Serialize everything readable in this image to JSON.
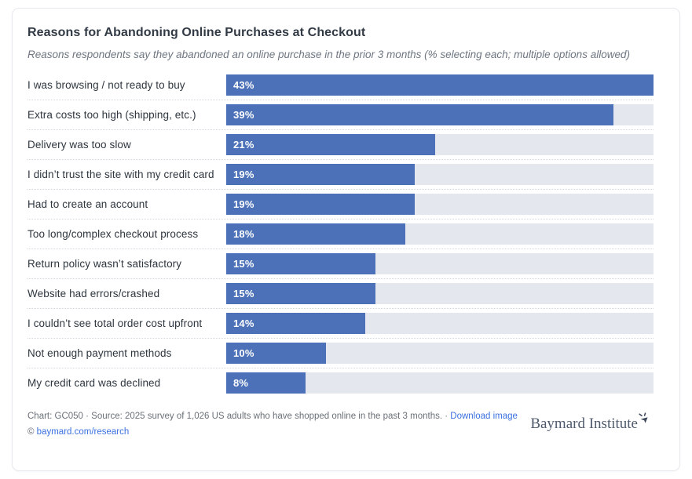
{
  "header": {
    "title": "Reasons for Abandoning Online Purchases at Checkout",
    "subtitle": "Reasons respondents say they abandoned an online purchase in the prior 3 months (% selecting each; multiple options allowed)"
  },
  "chart_data": {
    "type": "bar",
    "orientation": "horizontal",
    "categories": [
      "I was browsing / not ready to buy",
      "Extra costs too high (shipping, etc.)",
      "Delivery was too slow",
      "I didn’t trust the site with my credit card",
      "Had to create an account",
      "Too long/complex checkout process",
      "Return policy wasn’t satisfactory",
      "Website had errors/crashed",
      "I couldn’t see total order cost upfront",
      "Not enough payment methods",
      "My credit card was declined"
    ],
    "values": [
      43,
      39,
      21,
      19,
      19,
      18,
      15,
      15,
      14,
      10,
      8
    ],
    "value_suffix": "%",
    "title": "Reasons for Abandoning Online Purchases at Checkout",
    "xlabel": "",
    "ylabel": "",
    "xlim": [
      0,
      43
    ],
    "grid": false,
    "legend": false,
    "data_labels": "inside-start"
  },
  "footer": {
    "line1_prefix": "Chart: GC050 · Source: 2025 survey of 1,026 US adults who have shopped online in the past 3 months. · ",
    "download_label": "Download image",
    "copyright_symbol": "© ",
    "copyright_link": "baymard.com/research"
  },
  "brand": {
    "name": "Baymard Institute",
    "logo_icon": "cursor-click-icon"
  },
  "colors": {
    "bar": "#4c71b8",
    "track": "#e4e7ed",
    "title": "#323a45",
    "subtitle": "#6e7681",
    "footer_text": "#6a7078",
    "link": "#3b70e0",
    "brand_text": "#4f5b6d",
    "card_border": "#e7e9ee"
  }
}
